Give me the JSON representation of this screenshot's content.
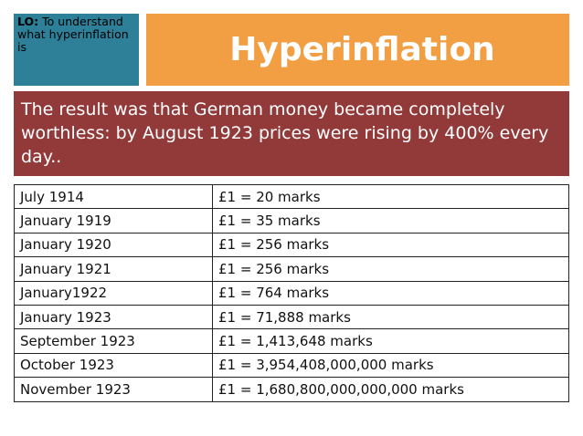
{
  "objective": {
    "prefix": "LO:",
    "text": "To understand what hyperinflation is"
  },
  "title": "Hyperinflation",
  "banner": "The result was that German money became completely worthless: by August 1923 prices were rising by 400% every day..",
  "table": {
    "rows": [
      {
        "date": "July 1914",
        "rate": "£1 = 20 marks"
      },
      {
        "date": "January 1919",
        "rate": "£1 = 35 marks"
      },
      {
        "date": "January 1920",
        "rate": "£1 = 256 marks"
      },
      {
        "date": "January 1921",
        "rate": "£1 = 256 marks"
      },
      {
        "date": "January1922",
        "rate": "£1 = 764 marks"
      },
      {
        "date": "January 1923",
        "rate": "£1 = 71,888 marks"
      },
      {
        "date": "September 1923",
        "rate": "£1 = 1,413,648 marks"
      },
      {
        "date": "October 1923",
        "rate": "£1 = 3,954,408,000,000 marks"
      },
      {
        "date": "November 1923",
        "rate": "£1 = 1,680,800,000,000,000 marks"
      }
    ]
  },
  "colors": {
    "objective_bg": "#2e7f98",
    "title_bg": "#f29e42",
    "banner_bg": "#923a3a"
  }
}
